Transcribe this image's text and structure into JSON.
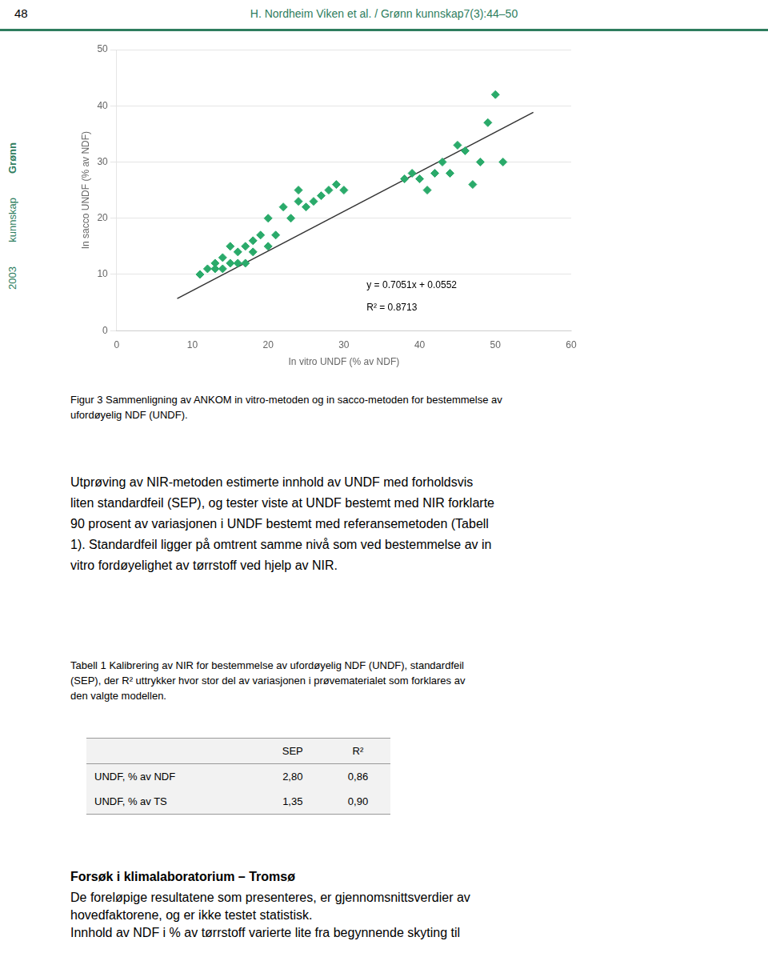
{
  "chart_data": {
    "type": "scatter",
    "xlabel": "In vitro UNDF (% av NDF)",
    "ylabel": "In sacco UNDF (% av NDF)",
    "annotations": [
      "y = 0.7051x + 0.0552",
      "R² = 0.8713"
    ],
    "series": [
      {
        "type": "scatter",
        "color": "#2aaa6a",
        "marker": "diamond",
        "x": [
          11,
          12,
          13,
          13,
          14,
          14,
          15,
          15,
          16,
          16,
          17,
          17,
          18,
          18,
          19,
          20,
          20,
          21,
          22,
          23,
          24,
          24,
          25,
          26,
          27,
          28,
          29,
          30,
          38,
          39,
          40,
          41,
          42,
          43,
          44,
          45,
          46,
          47,
          48,
          49,
          50,
          51
        ],
        "values": [
          10,
          11,
          11,
          12,
          11,
          13,
          12,
          15,
          12,
          14,
          12,
          15,
          14,
          16,
          17,
          15,
          20,
          17,
          22,
          20,
          23,
          25,
          22,
          23,
          24,
          25,
          26,
          25,
          27,
          28,
          27,
          25,
          28,
          30,
          28,
          33,
          32,
          26,
          30,
          37,
          42,
          30
        ]
      },
      {
        "type": "line",
        "color": "#333333",
        "line_style": "solid",
        "x": [
          8,
          55
        ],
        "values": [
          5.696,
          38.8357
        ]
      }
    ],
    "xlim": [
      0,
      60
    ],
    "xticks": [
      0,
      10,
      20,
      30,
      40,
      50,
      60
    ],
    "ylim": [
      0,
      50
    ],
    "yticks": [
      0,
      10,
      20,
      30,
      40,
      50
    ],
    "grid": "y",
    "legend": false
  },
  "page_number": "48",
  "header": "H. Nordheim Viken et al. / Grønn kunnskap7(3):44–50",
  "sidebar": [
    "Grønn",
    "kunnskap",
    "2003"
  ],
  "figcaption": [
    "Figur 3  Sammenligning av ANKOM in vitro-metoden og in sacco-metoden for bestemmelse av",
    "ufordøyelig NDF (UNDF)."
  ],
  "body_text": [
    "Utprøving av NIR-metoden estimerte innhold av UNDF med forholdsvis",
    "liten standardfeil (SEP), og tester viste at UNDF bestemt med NIR forklarte",
    "90 prosent av variasjonen i UNDF bestemt med referansemetoden  (Tabell",
    "1). Standardfeil ligger på omtrent samme nivå som ved bestemmelse av in",
    "vitro fordøyelighet av tørrstoff ved hjelp av NIR."
  ],
  "table_caption": [
    "Tabell 1 Kalibrering av NIR for bestemmelse av ufordøyelig NDF (UNDF), standardfeil",
    "(SEP), der R² uttrykker hvor stor del av variasjonen i prøvematerialet som forklares av",
    "den valgte modellen."
  ],
  "table": {
    "headers": [
      "SEP",
      "R²"
    ],
    "rows": [
      {
        "label": "UNDF, % av NDF",
        "values": [
          "2,80",
          "0,86"
        ]
      },
      {
        "label": "UNDF, % av TS",
        "values": [
          "1,35",
          "0,90"
        ]
      }
    ]
  },
  "section_header": "Forsøk i klimalaboratorium – Tromsø",
  "section_body": [
    "De foreløpige resultatene som presenteres, er gjennomsnittsverdier av",
    "hovedfaktorene, og er ikke testet statistisk.",
    "Innhold av NDF i % av tørrstoff varierte lite fra begynnende skyting til"
  ]
}
